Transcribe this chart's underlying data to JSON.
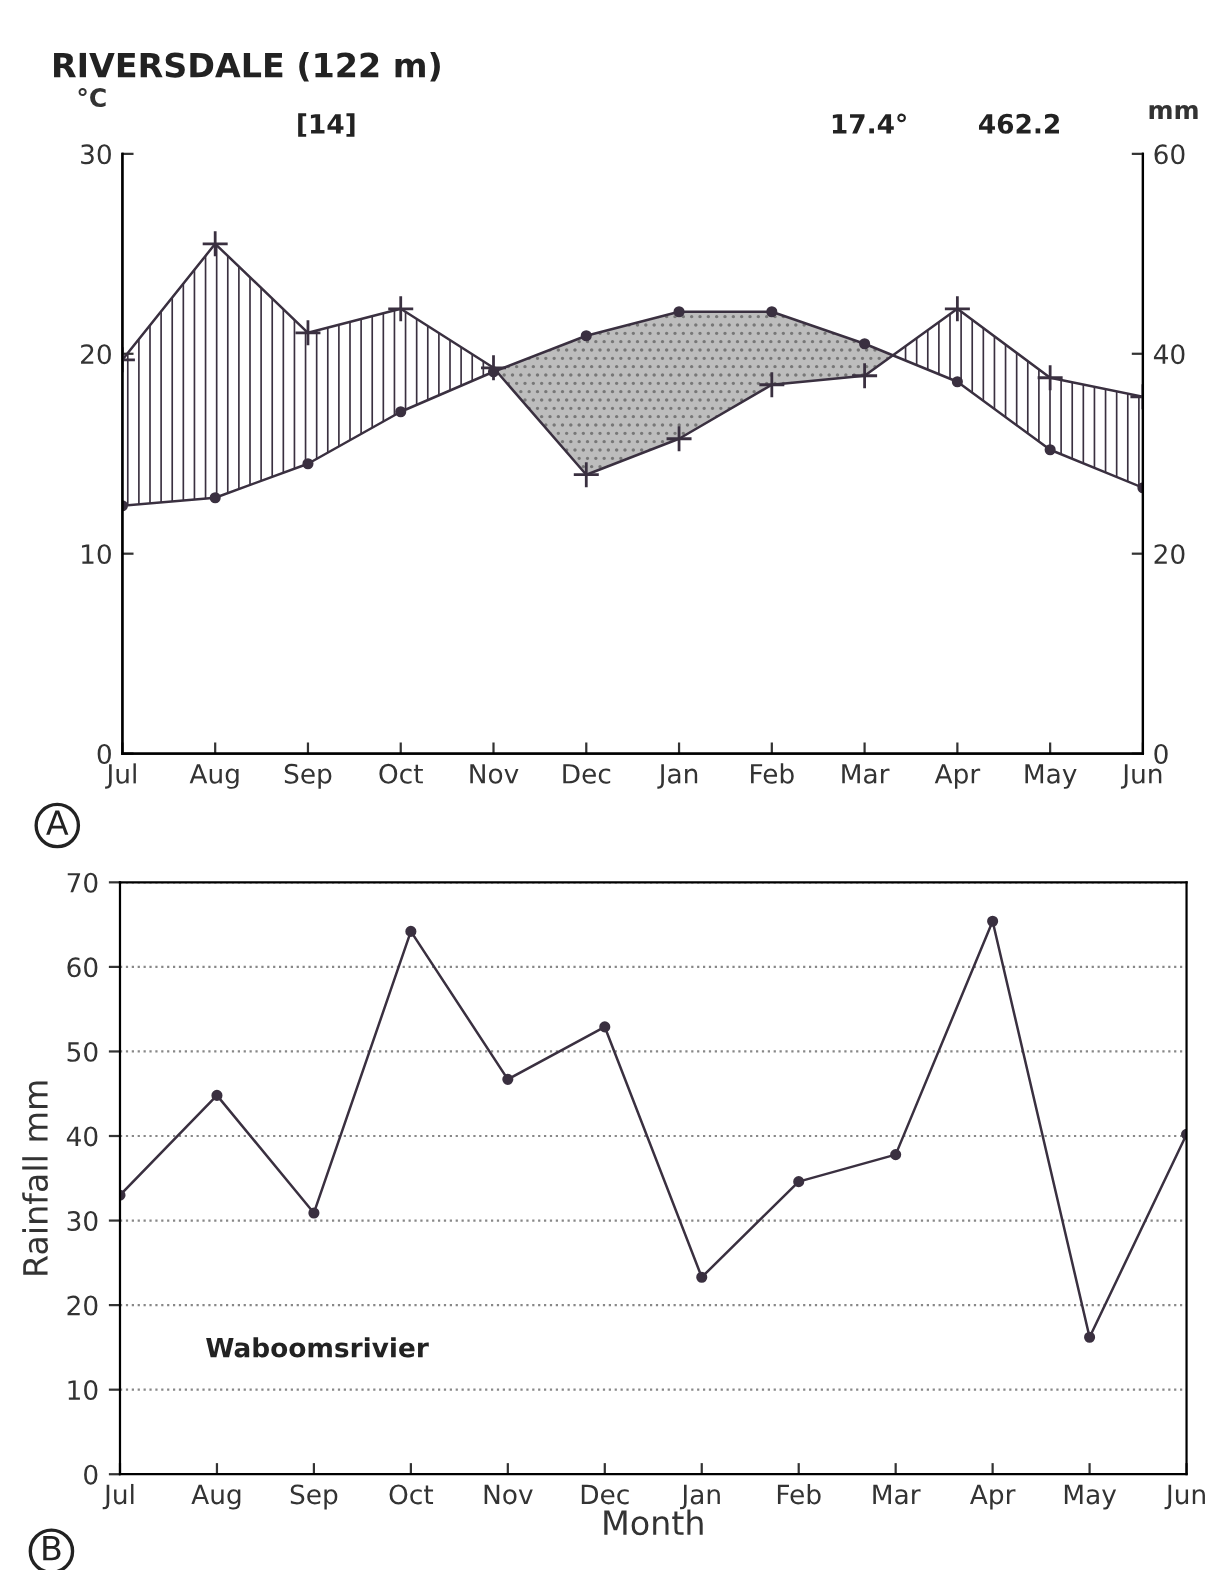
{
  "chart_data": [
    {
      "type": "line",
      "title": "RIVERSDALE (122 m)",
      "ylabel": "°C",
      "y2label": "mm",
      "categories": [
        "Jul",
        "Aug",
        "Sep",
        "Oct",
        "Nov",
        "Dec",
        "Jan",
        "Feb",
        "Mar",
        "Apr",
        "May",
        "Jun"
      ],
      "series": [
        {
          "color": "#3a3040",
          "marker": "circle",
          "values": [
            12.4,
            12.8,
            14.5,
            17.1,
            19.1,
            20.9,
            22.1,
            22.1,
            20.5,
            18.6,
            15.2,
            13.3
          ]
        },
        {
          "color": "#3a3040",
          "marker": "cross",
          "axis": "y2",
          "values": [
            39.4,
            51.0,
            42.1,
            44.5,
            38.6,
            27.9,
            31.5,
            36.9,
            37.8,
            44.5,
            37.6,
            35.7
          ]
        }
      ],
      "ylim": [
        0,
        30
      ],
      "yticks": [
        0,
        10,
        20,
        30
      ],
      "y2lim": [
        0,
        60
      ],
      "y2ticks": [
        0,
        20,
        40,
        60
      ],
      "grid": false,
      "annotations": [
        "[14]",
        "17.4°",
        "462.2",
        "A"
      ]
    },
    {
      "type": "line",
      "xlabel": "Month",
      "ylabel": "Rainfall mm",
      "categories": [
        "Jul",
        "Aug",
        "Sep",
        "Oct",
        "Nov",
        "Dec",
        "Jan",
        "Feb",
        "Mar",
        "Apr",
        "May",
        "Jun"
      ],
      "series": [
        {
          "color": "#3a3040",
          "marker": "circle",
          "values": [
            33.0,
            44.8,
            30.9,
            64.2,
            46.7,
            52.9,
            23.3,
            34.6,
            37.8,
            65.4,
            16.2,
            40.2
          ]
        }
      ],
      "ylim": [
        0,
        70
      ],
      "yticks": [
        0,
        10,
        20,
        30,
        40,
        50,
        60,
        70
      ],
      "grid": "y",
      "annotations": [
        "Waboomsrivier",
        "B"
      ]
    }
  ]
}
